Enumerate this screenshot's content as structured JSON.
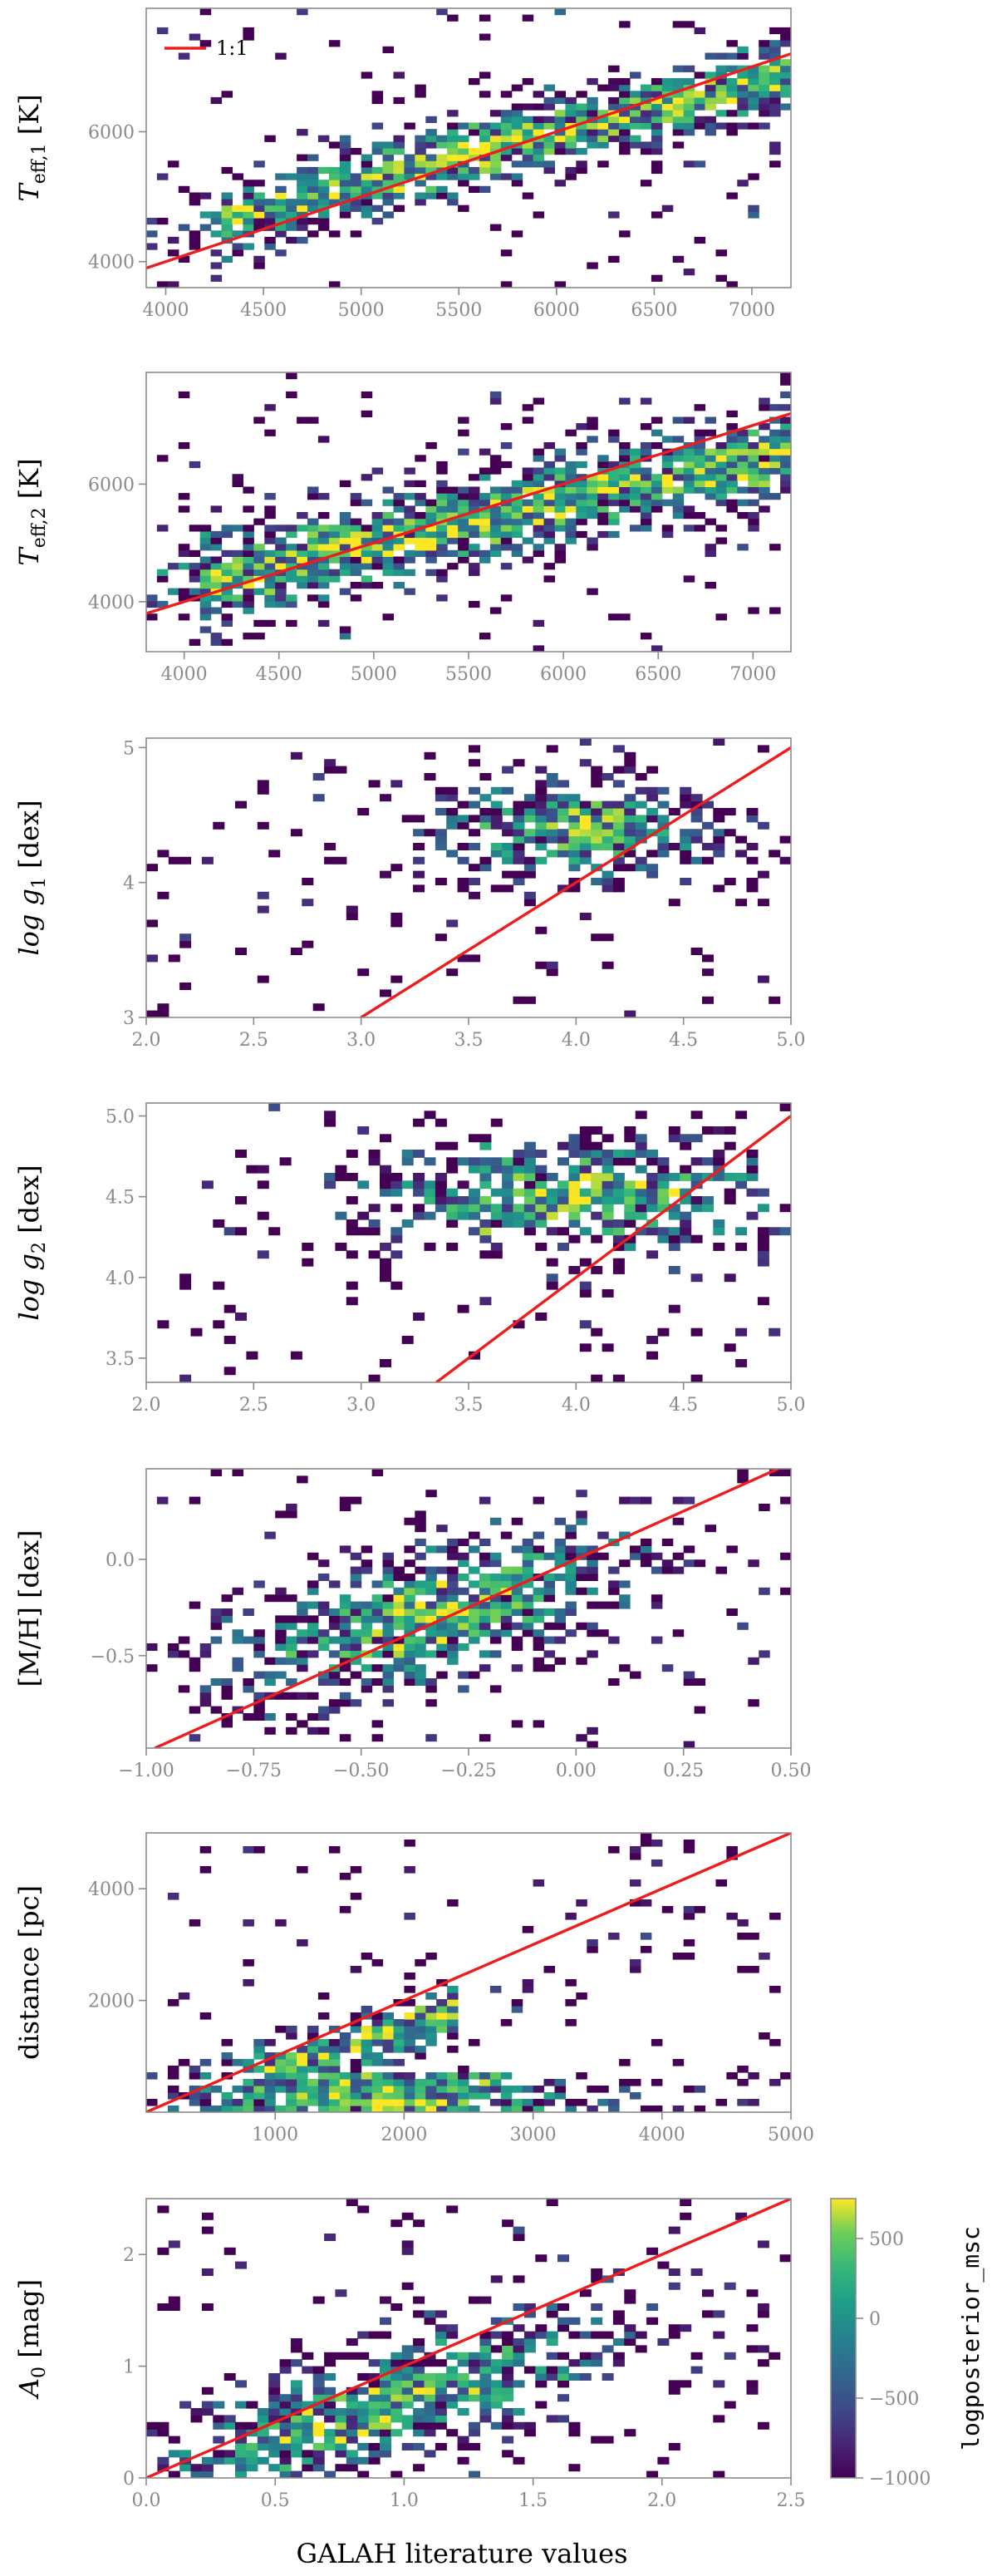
{
  "figure": {
    "common_xlabel": "GALAH literature values",
    "legend_label": "1:1",
    "colorbar_label": "logposterior_msc",
    "colorbar_ticks": [
      "500",
      "0",
      "−500",
      "−1000"
    ],
    "colorbar_tick_values": [
      500,
      0,
      -500,
      -1000
    ],
    "colorbar_range": [
      -1000,
      750
    ],
    "colormap": "viridis",
    "one_to_one_color": "#ee1c1c"
  },
  "chart_data": [
    {
      "id": "teff1",
      "type": "heatmap",
      "ylabel": "T_eff,1 [K]",
      "ylabel_main": "T",
      "ylabel_sub": "eff,1",
      "ylabel_unit": " [K]",
      "xlim": [
        3900,
        7200
      ],
      "ylim": [
        3600,
        7900
      ],
      "xticks": [
        4000,
        4500,
        5000,
        5500,
        6000,
        6500,
        7000
      ],
      "xtick_labels": [
        "4000",
        "4500",
        "5000",
        "5500",
        "6000",
        "6500",
        "7000"
      ],
      "yticks": [
        4000,
        6000
      ],
      "ytick_labels": [
        "4000",
        "6000"
      ],
      "one_to_one": true,
      "legend": "top-left"
    },
    {
      "id": "teff2",
      "type": "heatmap",
      "ylabel": "T_eff,2 [K]",
      "ylabel_main": "T",
      "ylabel_sub": "eff,2",
      "ylabel_unit": " [K]",
      "xlim": [
        3800,
        7200
      ],
      "ylim": [
        3150,
        7900
      ],
      "xticks": [
        4000,
        4500,
        5000,
        5500,
        6000,
        6500,
        7000
      ],
      "xtick_labels": [
        "4000",
        "4500",
        "5000",
        "5500",
        "6000",
        "6500",
        "7000"
      ],
      "yticks": [
        4000,
        6000
      ],
      "ytick_labels": [
        "4000",
        "6000"
      ],
      "one_to_one": true
    },
    {
      "id": "logg1",
      "type": "heatmap",
      "ylabel": "log g_1 [dex]",
      "ylabel_main": "log g",
      "ylabel_sub": "1",
      "ylabel_unit": " [dex]",
      "xlim": [
        2.0,
        5.0
      ],
      "ylim": [
        3.0,
        5.07
      ],
      "xticks": [
        2.0,
        2.5,
        3.0,
        3.5,
        4.0,
        4.5,
        5.0
      ],
      "xtick_labels": [
        "2.0",
        "2.5",
        "3.0",
        "3.5",
        "4.0",
        "4.5",
        "5.0"
      ],
      "yticks": [
        3,
        4,
        5
      ],
      "ytick_labels": [
        "3",
        "4",
        "5"
      ],
      "one_to_one": true
    },
    {
      "id": "logg2",
      "type": "heatmap",
      "ylabel": "log g_2 [dex]",
      "ylabel_main": "log g",
      "ylabel_sub": "2",
      "ylabel_unit": " [dex]",
      "xlim": [
        2.0,
        5.0
      ],
      "ylim": [
        3.35,
        5.08
      ],
      "xticks": [
        2.0,
        2.5,
        3.0,
        3.5,
        4.0,
        4.5,
        5.0
      ],
      "xtick_labels": [
        "2.0",
        "2.5",
        "3.0",
        "3.5",
        "4.0",
        "4.5",
        "5.0"
      ],
      "yticks": [
        3.5,
        4.0,
        4.5,
        5.0
      ],
      "ytick_labels": [
        "3.5",
        "4.0",
        "4.5",
        "5.0"
      ],
      "one_to_one": true
    },
    {
      "id": "mh",
      "type": "heatmap",
      "ylabel": "[M/H] [dex]",
      "ylabel_main": "[M/H] [dex]",
      "ylabel_sub": "",
      "ylabel_unit": "",
      "xlim": [
        -1.0,
        0.5
      ],
      "ylim": [
        -0.98,
        0.47
      ],
      "xticks": [
        -1.0,
        -0.75,
        -0.5,
        -0.25,
        0.0,
        0.25,
        0.5
      ],
      "xtick_labels": [
        "−1.00",
        "−0.75",
        "−0.50",
        "−0.25",
        "0.00",
        "0.25",
        "0.50"
      ],
      "yticks": [
        -0.5,
        0.0
      ],
      "ytick_labels": [
        "−0.5",
        "0.0"
      ],
      "one_to_one": true
    },
    {
      "id": "distance",
      "type": "heatmap",
      "ylabel": "distance [pc]",
      "ylabel_main": "distance [pc]",
      "ylabel_sub": "",
      "ylabel_unit": "",
      "xlim": [
        0,
        5000
      ],
      "ylim": [
        0,
        5000
      ],
      "xticks": [
        1000,
        2000,
        3000,
        4000,
        5000
      ],
      "xtick_labels": [
        "1000",
        "2000",
        "3000",
        "4000",
        "5000"
      ],
      "yticks": [
        2000,
        4000
      ],
      "ytick_labels": [
        "2000",
        "4000"
      ],
      "one_to_one": true
    },
    {
      "id": "a0",
      "type": "heatmap",
      "ylabel": "A_0 [mag]",
      "ylabel_main": "A",
      "ylabel_sub": "0",
      "ylabel_unit": " [mag]",
      "xlim": [
        0.0,
        2.5
      ],
      "ylim": [
        0.0,
        2.5
      ],
      "xticks": [
        0.0,
        0.5,
        1.0,
        1.5,
        2.0,
        2.5
      ],
      "xtick_labels": [
        "0.0",
        "0.5",
        "1.0",
        "1.5",
        "2.0",
        "2.5"
      ],
      "yticks": [
        0,
        1,
        2
      ],
      "ytick_labels": [
        "0",
        "1",
        "2"
      ],
      "one_to_one": true,
      "colorbar": true
    }
  ]
}
